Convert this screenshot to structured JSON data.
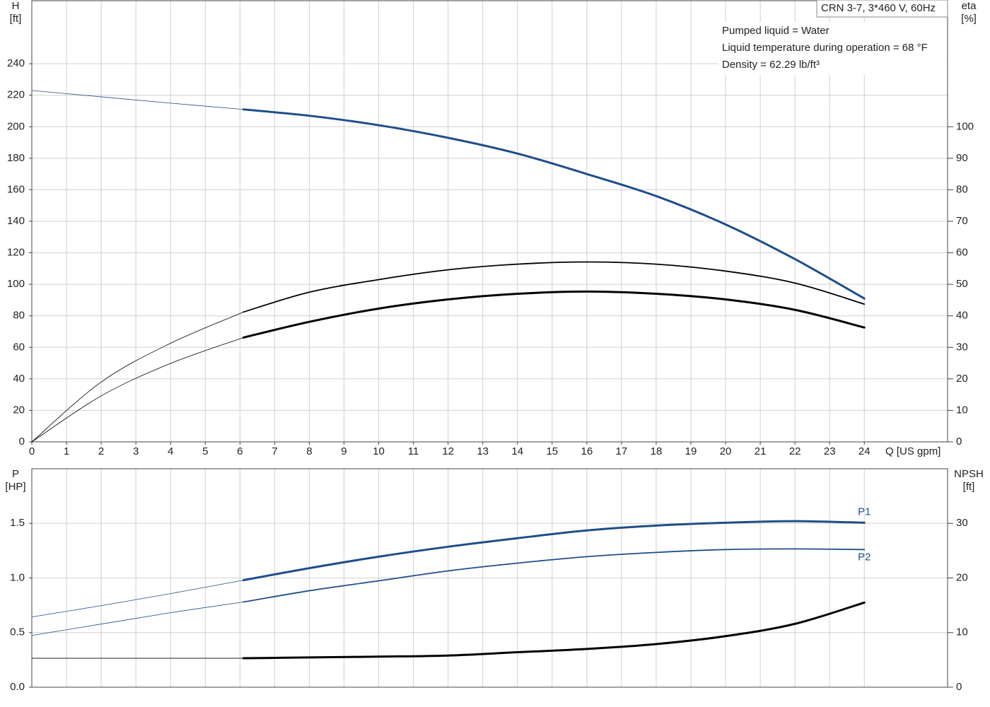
{
  "chart_data": [
    {
      "type": "line",
      "title": "CRN 3-7, 3*460 V, 60Hz",
      "notes": [
        "Pumped liquid = Water",
        "Liquid temperature during operation = 68 °F",
        "Density = 62.29 lb/ft³"
      ],
      "x_label": "Q [US gpm]",
      "y_label": "H",
      "y_unit": "[ft]",
      "y2_label": "eta",
      "y2_unit": "[%]",
      "x": [
        0,
        2,
        4,
        6.1,
        8,
        10,
        12,
        14,
        16,
        18,
        20,
        22,
        24
      ],
      "duty_range": [
        6.1,
        24
      ],
      "series": [
        {
          "color": "#1f4e89",
          "style": "bold",
          "values": [
            223,
            219,
            215,
            211,
            207,
            201,
            193,
            183,
            170,
            156,
            138,
            116,
            91
          ]
        },
        {
          "color": "#000000",
          "style": "regular",
          "axis": "y2",
          "values": [
            0,
            19,
            31.3,
            41.2,
            47.5,
            51.5,
            54.6,
            56.4,
            57.1,
            56.4,
            54.2,
            50.4,
            43.7
          ]
        },
        {
          "color": "#000000",
          "style": "bold",
          "axis": "y2",
          "values": [
            0,
            14.6,
            24.9,
            33.1,
            38.1,
            42.3,
            45.2,
            47,
            47.7,
            47,
            45.2,
            41.9,
            36.3
          ]
        }
      ],
      "xlim": [
        0,
        26.4
      ],
      "xticks": [
        0,
        1,
        2,
        3,
        4,
        5,
        6,
        7,
        8,
        9,
        10,
        11,
        12,
        13,
        14,
        15,
        16,
        17,
        18,
        19,
        20,
        21,
        22,
        23,
        24
      ],
      "ylim": [
        0,
        280
      ],
      "yticks": [
        0,
        20,
        40,
        60,
        80,
        100,
        120,
        140,
        160,
        180,
        200,
        220,
        240
      ],
      "y2lim": [
        0,
        140
      ],
      "y2ticks": [
        0,
        10,
        20,
        30,
        40,
        50,
        60,
        70,
        80,
        90,
        100
      ],
      "grid": true
    },
    {
      "type": "line",
      "y_label": "P",
      "y_unit": "[HP]",
      "y2_label": "NPSH",
      "y2_unit": "[ft]",
      "x": [
        0,
        2,
        4,
        6.1,
        8,
        10,
        12,
        14,
        16,
        18,
        20,
        22,
        24
      ],
      "duty_range": [
        6.1,
        24
      ],
      "series": [
        {
          "name": "P1",
          "color": "#1f4e89",
          "style": "bold",
          "values": [
            0.643,
            0.747,
            0.857,
            0.98,
            1.09,
            1.195,
            1.286,
            1.364,
            1.435,
            1.48,
            1.506,
            1.52,
            1.506
          ]
        },
        {
          "name": "P2",
          "color": "#1f4e89",
          "style": "regular",
          "values": [
            0.474,
            0.578,
            0.682,
            0.78,
            0.883,
            0.974,
            1.065,
            1.136,
            1.195,
            1.234,
            1.26,
            1.266,
            1.26
          ]
        },
        {
          "color": "#000000",
          "style": "bold",
          "axis": "y2",
          "values": [
            5.3,
            5.3,
            5.3,
            5.3,
            5.45,
            5.6,
            5.8,
            6.4,
            7.0,
            7.9,
            9.35,
            11.6,
            15.5
          ]
        }
      ],
      "xlim": [
        0,
        26.4
      ],
      "ylim": [
        0,
        2.0
      ],
      "yticks": [
        {
          "value": 0,
          "label": "0.0"
        },
        0.5,
        {
          "value": 1,
          "label": "1.0"
        },
        1.5
      ],
      "y2lim": [
        0,
        40
      ],
      "y2ticks": [
        0,
        10,
        20,
        30
      ],
      "grid": true
    }
  ]
}
